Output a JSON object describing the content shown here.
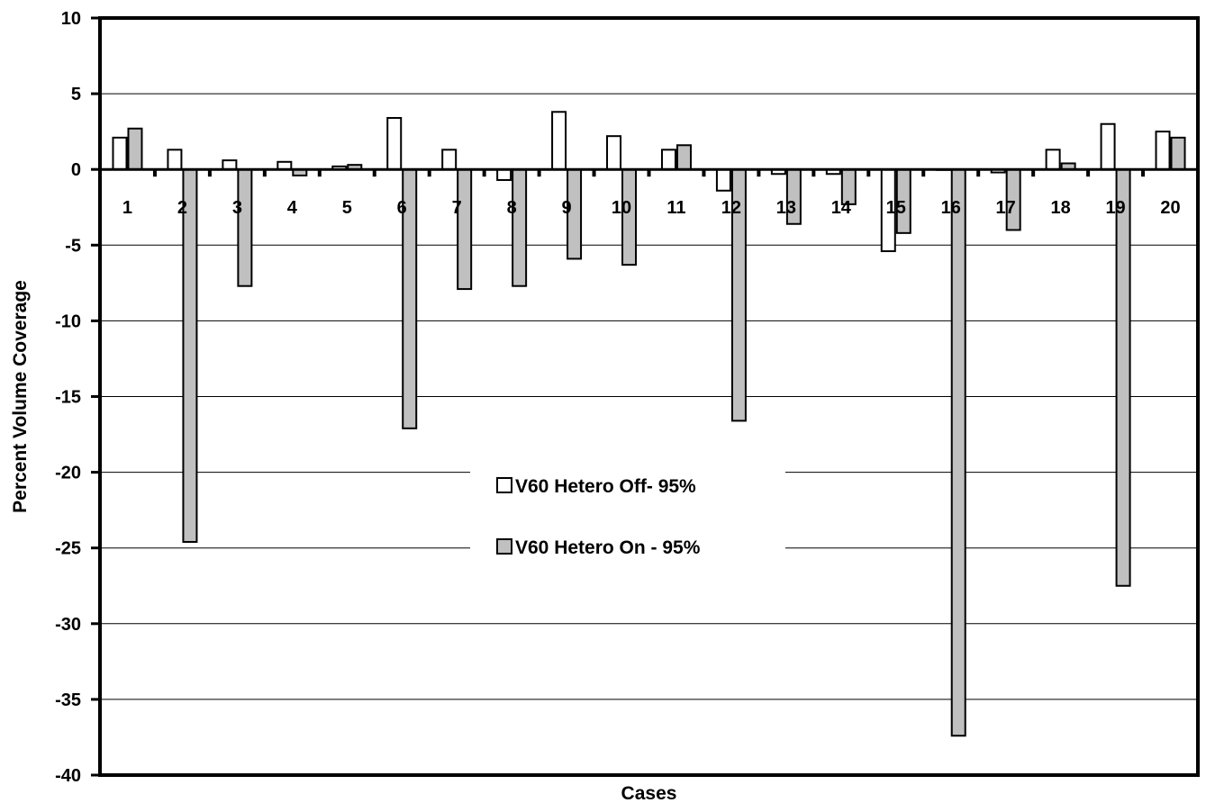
{
  "chart_data": {
    "type": "bar",
    "title": "",
    "xlabel": "Cases",
    "ylabel": "Percent Volume Coverage",
    "ylim": [
      -40,
      10
    ],
    "yticks": [
      10,
      5,
      0,
      -5,
      -10,
      -15,
      -20,
      -25,
      -30,
      -35,
      -40
    ],
    "ytick_labels": [
      "10",
      "5",
      "0",
      "-5",
      "-10",
      "-15",
      "-20",
      "-25",
      "-30",
      "-35",
      "-40"
    ],
    "grid": true,
    "legend_position": "center",
    "categories": [
      "1",
      "2",
      "3",
      "4",
      "5",
      "6",
      "7",
      "8",
      "9",
      "10",
      "11",
      "12",
      "13",
      "14",
      "15",
      "16",
      "17",
      "18",
      "19",
      "20"
    ],
    "series": [
      {
        "name": "V60 Hetero Off- 95%",
        "color": "#ffffff",
        "values": [
          2.1,
          1.3,
          0.6,
          0.5,
          0.2,
          3.4,
          1.3,
          -0.7,
          3.8,
          2.2,
          1.3,
          -1.4,
          -0.3,
          -0.3,
          -5.4,
          0.0,
          -0.2,
          1.3,
          3.0,
          2.5
        ]
      },
      {
        "name": "V60 Hetero On - 95%",
        "color": "#c0c0c0",
        "values": [
          2.7,
          -24.6,
          -7.7,
          -0.4,
          0.3,
          -17.1,
          -7.9,
          -7.7,
          -5.9,
          -6.3,
          1.6,
          -16.6,
          -3.6,
          -2.3,
          -4.2,
          -37.4,
          -4.0,
          0.4,
          -27.5,
          2.1
        ]
      }
    ]
  }
}
